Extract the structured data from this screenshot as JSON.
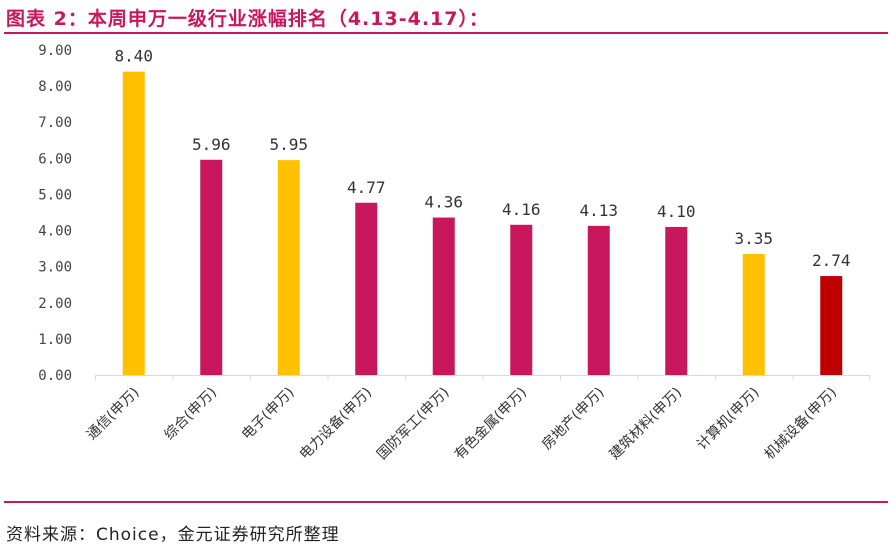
{
  "header": {
    "title": "图表 2：本周申万一级行业涨幅排名（4.13-4.17）："
  },
  "footer": {
    "source": "资料来源：Choice，金元证券研究所整理"
  },
  "colors": {
    "accent": "#c8175d",
    "gold": "#ffc000",
    "magenta": "#c8175d",
    "red": "#c00000",
    "axis": "#d9d9d9"
  },
  "chart_data": {
    "type": "bar",
    "title": "",
    "xlabel": "",
    "ylabel": "",
    "ylim": [
      0,
      9
    ],
    "yticks": [
      "0.00",
      "1.00",
      "2.00",
      "3.00",
      "4.00",
      "5.00",
      "6.00",
      "7.00",
      "8.00",
      "9.00"
    ],
    "grid": false,
    "legend": "none",
    "categories": [
      "通信(申万)",
      "综合(申万)",
      "电子(申万)",
      "电力设备(申万)",
      "国防军工(申万)",
      "有色金属(申万)",
      "房地产(申万)",
      "建筑材料(申万)",
      "计算机(申万)",
      "机械设备(申万)"
    ],
    "values": [
      8.4,
      5.96,
      5.95,
      4.77,
      4.36,
      4.16,
      4.13,
      4.1,
      3.35,
      2.74
    ],
    "value_labels": [
      "8.40",
      "5.96",
      "5.95",
      "4.77",
      "4.36",
      "4.16",
      "4.13",
      "4.10",
      "3.35",
      "2.74"
    ],
    "bar_colors": [
      "#ffc000",
      "#c8175d",
      "#ffc000",
      "#c8175d",
      "#c8175d",
      "#c8175d",
      "#c8175d",
      "#c8175d",
      "#ffc000",
      "#c00000"
    ]
  }
}
